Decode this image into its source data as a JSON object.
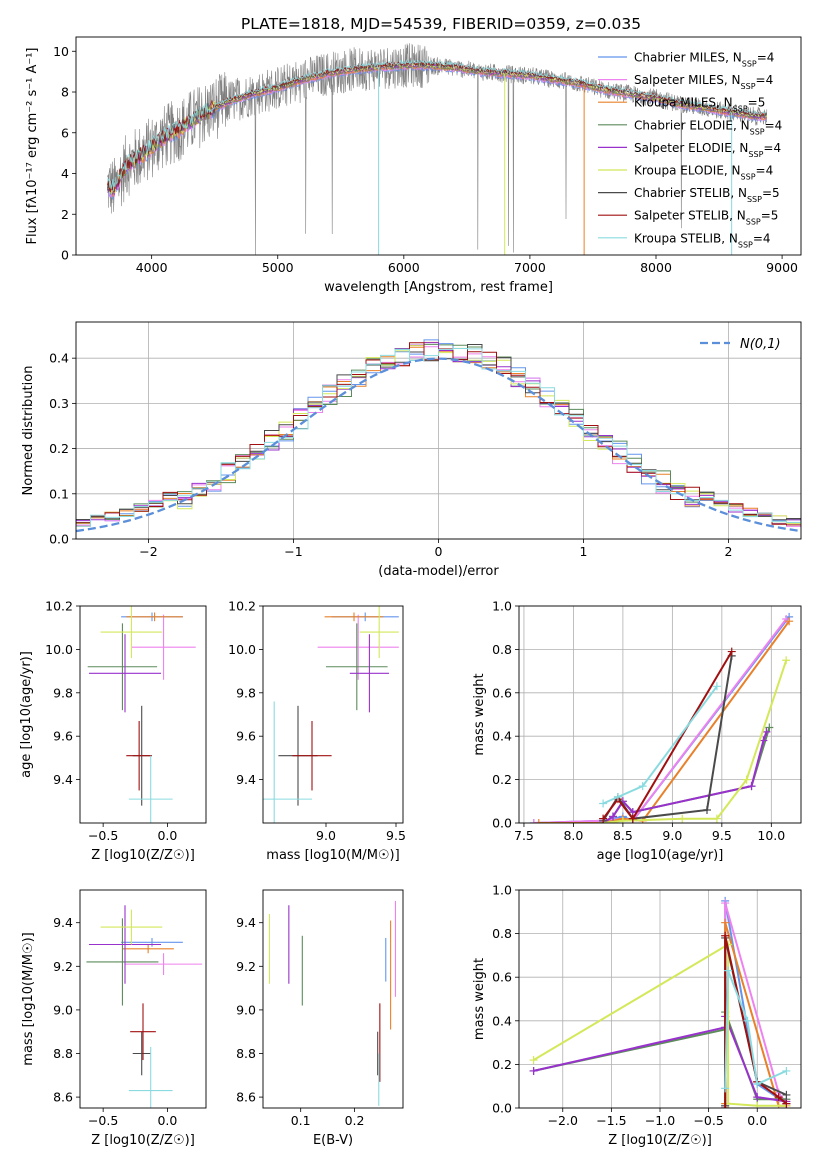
{
  "title": "PLATE=1818, MJD=54539, FIBERID=0359, z=0.035",
  "models": [
    {
      "name": "Chabrier MILES",
      "nssp": "4",
      "color": "#6495ed"
    },
    {
      "name": "Salpeter MILES",
      "nssp": "4",
      "color": "#ee82ee"
    },
    {
      "name": "Kroupa MILES",
      "nssp": "5",
      "color": "#e8812a"
    },
    {
      "name": "Chabrier ELODIE",
      "nssp": "4",
      "color": "#5b8c5a"
    },
    {
      "name": "Salpeter ELODIE",
      "nssp": "4",
      "color": "#9932cc"
    },
    {
      "name": "Kroupa ELODIE",
      "nssp": "4",
      "color": "#d4e85a"
    },
    {
      "name": "Chabrier STELIB",
      "nssp": "5",
      "color": "#4a4a4a"
    },
    {
      "name": "Salpeter STELIB",
      "nssp": "5",
      "color": "#a01010"
    },
    {
      "name": "Kroupa STELIB",
      "nssp": "4",
      "color": "#8adbe0"
    }
  ],
  "chart_data": [
    {
      "id": "spectrum",
      "type": "line",
      "xlabel": "wavelength [Angstrom, rest frame]",
      "ylabel": "Flux [fλ10⁻¹⁷ erg cm⁻² s⁻¹ A⁻¹]",
      "xlim": [
        3400,
        9150
      ],
      "ylim": [
        0,
        10.7
      ],
      "xticks": [
        4000,
        5000,
        6000,
        7000,
        8000,
        9000
      ],
      "yticks": [
        0,
        2,
        4,
        6,
        8,
        10
      ],
      "grid": false,
      "legend_position": "right",
      "data_color": "#808080",
      "model_continuum": {
        "x": [
          3650,
          3700,
          3800,
          3900,
          4000,
          4100,
          4200,
          4300,
          4400,
          4500,
          4600,
          4800,
          5000,
          5200,
          5400,
          5600,
          5800,
          6000,
          6200,
          6400,
          6600,
          6800,
          7000,
          7200,
          7400,
          7600,
          7800,
          8000,
          8200,
          8400,
          8600,
          8800
        ],
        "y": [
          3.4,
          3.2,
          4.4,
          4.8,
          5.3,
          5.8,
          6.1,
          6.5,
          6.9,
          7.2,
          7.5,
          7.9,
          8.2,
          8.6,
          8.9,
          9.1,
          9.2,
          9.3,
          9.3,
          9.2,
          9.0,
          8.9,
          8.8,
          8.6,
          8.4,
          8.1,
          7.9,
          7.7,
          7.4,
          7.2,
          7.0,
          6.8
        ]
      },
      "drops": [
        {
          "series": "Kroupa STELIB",
          "x": 5800
        },
        {
          "series": "Kroupa ELODIE",
          "x": 6800
        },
        {
          "series": "Kroupa MILES",
          "x": 7430
        },
        {
          "series": "Kroupa STELIB",
          "x": 8600
        }
      ]
    },
    {
      "id": "residual-hist",
      "type": "histogram",
      "xlabel": "(data-model)/error",
      "ylabel": "Normed distribution",
      "xlim": [
        -2.5,
        2.5
      ],
      "ylim": [
        0,
        0.48
      ],
      "xticks": [
        -2,
        -1,
        0,
        1,
        2
      ],
      "yticks": [
        0.0,
        0.1,
        0.2,
        0.3,
        0.4
      ],
      "grid": true,
      "legend_position": "top-right",
      "legend_label": "N(0,1)",
      "reference_color": "#5b8fd9",
      "bin_width": 0.1
    },
    {
      "id": "age-vs-z",
      "type": "errorbar",
      "xlabel": "Z [log10(Z/Z☉)]",
      "ylabel": "age [log10(age/yr)]",
      "xlim": [
        -0.68,
        0.3
      ],
      "ylim": [
        9.2,
        10.2
      ],
      "xticks": [
        -0.5,
        0.0
      ],
      "yticks": [
        9.4,
        9.6,
        9.8,
        10.0,
        10.2
      ],
      "grid": false,
      "points": [
        {
          "model": "Chabrier MILES",
          "x": -0.12,
          "y": 10.15,
          "xerr": 0.24,
          "yerr": 0.02
        },
        {
          "model": "Salpeter MILES",
          "x": -0.03,
          "y": 10.01,
          "xerr": 0.25,
          "yerr": 0.15
        },
        {
          "model": "Kroupa MILES",
          "x": -0.1,
          "y": 10.15,
          "xerr": 0.22,
          "yerr": 0.02
        },
        {
          "model": "Chabrier ELODIE",
          "x": -0.35,
          "y": 9.92,
          "xerr": 0.27,
          "yerr": 0.2
        },
        {
          "model": "Salpeter ELODIE",
          "x": -0.33,
          "y": 9.89,
          "xerr": 0.28,
          "yerr": 0.18
        },
        {
          "model": "Kroupa ELODIE",
          "x": -0.28,
          "y": 10.08,
          "xerr": 0.24,
          "yerr": 0.12
        },
        {
          "model": "Chabrier STELIB",
          "x": -0.2,
          "y": 9.51,
          "xerr": 0.07,
          "yerr": 0.23
        },
        {
          "model": "Salpeter STELIB",
          "x": -0.22,
          "y": 9.51,
          "xerr": 0.1,
          "yerr": 0.16
        },
        {
          "model": "Kroupa STELIB",
          "x": -0.13,
          "y": 9.31,
          "xerr": 0.17,
          "yerr": 0.2
        }
      ]
    },
    {
      "id": "age-vs-mass",
      "type": "errorbar",
      "xlabel": "mass [log10(M/M☉)]",
      "ylabel": "",
      "xlim": [
        8.55,
        9.55
      ],
      "ylim": [
        9.2,
        10.2
      ],
      "xticks": [
        8.5,
        9.0,
        9.5
      ],
      "yticks": [
        9.4,
        9.6,
        9.8,
        10.0,
        10.2
      ],
      "grid": false,
      "points": [
        {
          "model": "Chabrier MILES",
          "x": 9.28,
          "y": 10.15,
          "xerr": 0.24,
          "yerr": 0.02
        },
        {
          "model": "Salpeter MILES",
          "x": 9.23,
          "y": 10.01,
          "xerr": 0.29,
          "yerr": 0.15
        },
        {
          "model": "Kroupa MILES",
          "x": 9.2,
          "y": 10.15,
          "xerr": 0.21,
          "yerr": 0.02
        },
        {
          "model": "Chabrier ELODIE",
          "x": 9.22,
          "y": 9.92,
          "xerr": 0.22,
          "yerr": 0.2
        },
        {
          "model": "Salpeter ELODIE",
          "x": 9.31,
          "y": 9.89,
          "xerr": 0.14,
          "yerr": 0.18
        },
        {
          "model": "Kroupa ELODIE",
          "x": 9.38,
          "y": 10.08,
          "xerr": 0.14,
          "yerr": 0.12
        },
        {
          "model": "Chabrier STELIB",
          "x": 8.8,
          "y": 9.51,
          "xerr": 0.14,
          "yerr": 0.23
        },
        {
          "model": "Salpeter STELIB",
          "x": 8.9,
          "y": 9.51,
          "xerr": 0.14,
          "yerr": 0.16
        },
        {
          "model": "Kroupa STELIB",
          "x": 8.63,
          "y": 9.31,
          "xerr": 0.27,
          "yerr": 0.45
        }
      ]
    },
    {
      "id": "weight-vs-age",
      "type": "line",
      "xlabel": "age [log10(age/yr)]",
      "ylabel": "mass weight",
      "xlim": [
        7.45,
        10.3
      ],
      "ylim": [
        0,
        1
      ],
      "xticks": [
        7.5,
        8.0,
        8.5,
        9.0,
        9.5,
        10.0
      ],
      "yticks": [
        0.0,
        0.2,
        0.4,
        0.6,
        0.8,
        1.0
      ],
      "grid": true,
      "series": [
        {
          "model": "Chabrier MILES",
          "x": [
            7.6,
            8.3,
            8.5,
            8.6,
            10.18
          ],
          "y": [
            0.0,
            0.01,
            0.03,
            0.01,
            0.95
          ]
        },
        {
          "model": "Salpeter MILES",
          "x": [
            7.6,
            8.3,
            8.5,
            8.6,
            10.15
          ],
          "y": [
            0.0,
            0.01,
            0.02,
            0.01,
            0.94
          ]
        },
        {
          "model": "Kroupa MILES",
          "x": [
            7.65,
            8.3,
            8.5,
            8.7,
            10.18
          ],
          "y": [
            0.0,
            0.0,
            0.02,
            0.01,
            0.93
          ]
        },
        {
          "model": "Chabrier ELODIE",
          "x": [
            8.3,
            8.4,
            8.5,
            8.6,
            9.8,
            9.98
          ],
          "y": [
            0.0,
            0.03,
            0.1,
            0.05,
            0.17,
            0.44
          ]
        },
        {
          "model": "Salpeter ELODIE",
          "x": [
            8.3,
            8.4,
            8.5,
            8.6,
            9.8,
            9.92,
            9.95
          ],
          "y": [
            0.0,
            0.03,
            0.1,
            0.05,
            0.17,
            0.38,
            0.42
          ]
        },
        {
          "model": "Kroupa ELODIE",
          "x": [
            8.3,
            8.5,
            9.1,
            9.45,
            9.75,
            10.15
          ],
          "y": [
            0.0,
            0.01,
            0.02,
            0.02,
            0.2,
            0.75
          ]
        },
        {
          "model": "Chabrier STELIB",
          "x": [
            8.3,
            8.45,
            8.6,
            9.35,
            9.6
          ],
          "y": [
            0.01,
            0.12,
            0.02,
            0.06,
            0.77
          ]
        },
        {
          "model": "Salpeter STELIB",
          "x": [
            8.3,
            8.45,
            8.6,
            9.6
          ],
          "y": [
            0.02,
            0.11,
            0.02,
            0.79
          ]
        },
        {
          "model": "Kroupa STELIB",
          "x": [
            8.3,
            8.45,
            8.7,
            9.45
          ],
          "y": [
            0.09,
            0.12,
            0.17,
            0.63
          ]
        }
      ]
    },
    {
      "id": "mass-vs-z",
      "type": "errorbar",
      "xlabel": "Z [log10(Z/Z☉)]",
      "ylabel": "mass [log10(M/M☉)]",
      "xlim": [
        -0.68,
        0.3
      ],
      "ylim": [
        8.55,
        9.55
      ],
      "xticks": [
        -0.5,
        0.0
      ],
      "yticks": [
        8.6,
        8.8,
        9.0,
        9.2,
        9.4
      ],
      "grid": false,
      "points": [
        {
          "model": "Chabrier MILES",
          "x": -0.12,
          "y": 9.31,
          "xerr": 0.24,
          "yerr": 0.02
        },
        {
          "model": "Salpeter MILES",
          "x": -0.03,
          "y": 9.21,
          "xerr": 0.3,
          "yerr": 0.05
        },
        {
          "model": "Kroupa MILES",
          "x": -0.15,
          "y": 9.28,
          "xerr": 0.2,
          "yerr": 0.02
        },
        {
          "model": "Chabrier ELODIE",
          "x": -0.35,
          "y": 9.22,
          "xerr": 0.28,
          "yerr": 0.2
        },
        {
          "model": "Salpeter ELODIE",
          "x": -0.33,
          "y": 9.3,
          "xerr": 0.28,
          "yerr": 0.18
        },
        {
          "model": "Kroupa ELODIE",
          "x": -0.28,
          "y": 9.38,
          "xerr": 0.24,
          "yerr": 0.08
        },
        {
          "model": "Chabrier STELIB",
          "x": -0.2,
          "y": 8.8,
          "xerr": 0.07,
          "yerr": 0.1
        },
        {
          "model": "Salpeter STELIB",
          "x": -0.19,
          "y": 8.9,
          "xerr": 0.1,
          "yerr": 0.13
        },
        {
          "model": "Kroupa STELIB",
          "x": -0.13,
          "y": 8.63,
          "xerr": 0.17,
          "yerr": 0.2
        }
      ]
    },
    {
      "id": "mass-vs-ebv",
      "type": "errorbar",
      "xlabel": "E(B-V)",
      "ylabel": "",
      "xlim": [
        0.03,
        0.29
      ],
      "ylim": [
        8.55,
        9.55
      ],
      "xticks": [
        0.1,
        0.2
      ],
      "yticks": [
        8.6,
        8.8,
        9.0,
        9.2,
        9.4
      ],
      "grid": false,
      "points": [
        {
          "model": "Kroupa ELODIE",
          "x": 0.042,
          "y": 9.28,
          "xerr": 0.0,
          "yerr": 0.16
        },
        {
          "model": "Salpeter ELODIE",
          "x": 0.078,
          "y": 9.3,
          "xerr": 0.0,
          "yerr": 0.18
        },
        {
          "model": "Chabrier ELODIE",
          "x": 0.103,
          "y": 9.18,
          "xerr": 0.0,
          "yerr": 0.16
        },
        {
          "model": "Kroupa MILES",
          "x": 0.267,
          "y": 9.16,
          "xerr": 0.0,
          "yerr": 0.25
        },
        {
          "model": "Salpeter MILES",
          "x": 0.276,
          "y": 9.28,
          "xerr": 0.0,
          "yerr": 0.22
        },
        {
          "model": "Chabrier MILES",
          "x": 0.258,
          "y": 9.23,
          "xerr": 0.0,
          "yerr": 0.1
        },
        {
          "model": "Salpeter STELIB",
          "x": 0.247,
          "y": 8.85,
          "xerr": 0.0,
          "yerr": 0.18
        },
        {
          "model": "Chabrier STELIB",
          "x": 0.243,
          "y": 8.8,
          "xerr": 0.0,
          "yerr": 0.1
        },
        {
          "model": "Kroupa STELIB",
          "x": 0.245,
          "y": 8.68,
          "xerr": 0.0,
          "yerr": 0.12
        }
      ]
    },
    {
      "id": "weight-vs-z",
      "type": "line",
      "xlabel": "Z [log10(Z/Z☉)]",
      "ylabel": "mass weight",
      "xlim": [
        -2.45,
        0.45
      ],
      "ylim": [
        0,
        1
      ],
      "xticks": [
        -2.0,
        -1.5,
        -1.0,
        -0.5,
        0.0
      ],
      "yticks": [
        0.0,
        0.2,
        0.4,
        0.6,
        0.8,
        1.0
      ],
      "grid": true,
      "series": [
        {
          "model": "Chabrier MILES",
          "x": [
            -0.33,
            -0.33,
            0.0,
            0.3
          ],
          "y": [
            0.01,
            0.95,
            0.11,
            0.02
          ]
        },
        {
          "model": "Salpeter MILES",
          "x": [
            -0.33,
            -0.33,
            0.22,
            0.3
          ],
          "y": [
            0.0,
            0.94,
            0.07,
            0.02
          ]
        },
        {
          "model": "Kroupa MILES",
          "x": [
            -0.33,
            -0.33,
            0.22,
            0.3
          ],
          "y": [
            0.02,
            0.85,
            0.01,
            0.01
          ]
        },
        {
          "model": "Chabrier ELODIE",
          "x": [
            -2.3,
            -0.33,
            -0.33,
            0.0,
            0.3
          ],
          "y": [
            0.17,
            0.36,
            0.44,
            0.04,
            0.04
          ]
        },
        {
          "model": "Salpeter ELODIE",
          "x": [
            -2.3,
            -0.33,
            -0.33,
            0.0,
            0.3
          ],
          "y": [
            0.17,
            0.37,
            0.42,
            0.05,
            0.03
          ]
        },
        {
          "model": "Kroupa ELODIE",
          "x": [
            -2.3,
            -0.3,
            -0.3,
            0.0,
            0.3
          ],
          "y": [
            0.22,
            0.75,
            0.02,
            0.01,
            0.01
          ]
        },
        {
          "model": "Chabrier STELIB",
          "x": [
            -0.33,
            -0.33,
            0.0,
            0.3
          ],
          "y": [
            0.01,
            0.78,
            0.12,
            0.06
          ]
        },
        {
          "model": "Salpeter STELIB",
          "x": [
            -0.33,
            -0.33,
            0.0,
            0.22,
            0.3
          ],
          "y": [
            0.0,
            0.79,
            0.12,
            0.05,
            0.02
          ]
        },
        {
          "model": "Kroupa STELIB",
          "x": [
            -0.33,
            -0.3,
            -0.1,
            0.0,
            0.3
          ],
          "y": [
            0.09,
            0.63,
            0.4,
            0.11,
            0.17
          ]
        }
      ]
    }
  ]
}
